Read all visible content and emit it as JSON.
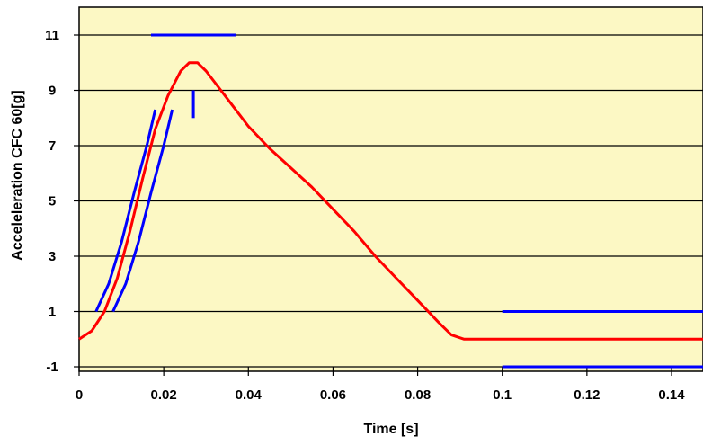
{
  "chart_data": {
    "type": "line",
    "xlabel": "Time [s]",
    "ylabel": "Acceleleration CFC 60[g]",
    "xlim": [
      0,
      0.15
    ],
    "ylim": [
      -1,
      12
    ],
    "x_ticks": [
      0,
      0.02,
      0.04,
      0.06,
      0.08,
      0.1,
      0.12,
      0.14
    ],
    "x_tick_labels": [
      "0",
      "0.02",
      "0.04",
      "0.06",
      "0.08",
      "0.1",
      "0.12",
      "0.14"
    ],
    "y_ticks": [
      -1,
      1,
      3,
      5,
      7,
      9,
      11
    ],
    "y_tick_labels": [
      "-1",
      "1",
      "3",
      "5",
      "7",
      "9",
      "11"
    ],
    "grid": "horizontal",
    "plot_background": "#FCF8C4",
    "series": [
      {
        "color": "#FF0000",
        "points": [
          [
            0,
            0
          ],
          [
            0.003,
            0.3
          ],
          [
            0.006,
            1.0
          ],
          [
            0.009,
            2.2
          ],
          [
            0.012,
            3.9
          ],
          [
            0.015,
            5.8
          ],
          [
            0.018,
            7.6
          ],
          [
            0.021,
            8.8
          ],
          [
            0.024,
            9.7
          ],
          [
            0.026,
            10.0
          ],
          [
            0.028,
            10.0
          ],
          [
            0.03,
            9.7
          ],
          [
            0.033,
            9.1
          ],
          [
            0.036,
            8.5
          ],
          [
            0.04,
            7.7
          ],
          [
            0.045,
            6.9
          ],
          [
            0.05,
            6.2
          ],
          [
            0.055,
            5.5
          ],
          [
            0.06,
            4.7
          ],
          [
            0.065,
            3.9
          ],
          [
            0.07,
            3.0
          ],
          [
            0.075,
            2.2
          ],
          [
            0.08,
            1.4
          ],
          [
            0.085,
            0.6
          ],
          [
            0.088,
            0.15
          ],
          [
            0.091,
            0
          ],
          [
            0.1,
            0
          ],
          [
            0.11,
            0
          ],
          [
            0.12,
            0
          ],
          [
            0.13,
            0
          ],
          [
            0.14,
            0
          ],
          [
            0.15,
            0
          ]
        ]
      },
      {
        "color": "#0000FF",
        "points": [
          [
            0.004,
            1.0
          ],
          [
            0.007,
            2.0
          ],
          [
            0.01,
            3.5
          ],
          [
            0.013,
            5.3
          ],
          [
            0.016,
            7.0
          ],
          [
            0.018,
            8.3
          ]
        ]
      },
      {
        "color": "#0000FF",
        "points": [
          [
            0.008,
            1.0
          ],
          [
            0.011,
            2.0
          ],
          [
            0.014,
            3.5
          ],
          [
            0.017,
            5.3
          ],
          [
            0.02,
            7.0
          ],
          [
            0.022,
            8.3
          ]
        ]
      },
      {
        "color": "#0000FF",
        "points": [
          [
            0.017,
            11.0
          ],
          [
            0.037,
            11.0
          ]
        ]
      },
      {
        "color": "#0000FF",
        "points": [
          [
            0.027,
            8.0
          ],
          [
            0.027,
            9.0
          ]
        ]
      },
      {
        "color": "#0000FF",
        "points": [
          [
            0.1,
            1.0
          ],
          [
            0.15,
            1.0
          ]
        ]
      },
      {
        "color": "#0000FF",
        "points": [
          [
            0.1,
            -1.0
          ],
          [
            0.15,
            -1.0
          ]
        ]
      }
    ]
  }
}
